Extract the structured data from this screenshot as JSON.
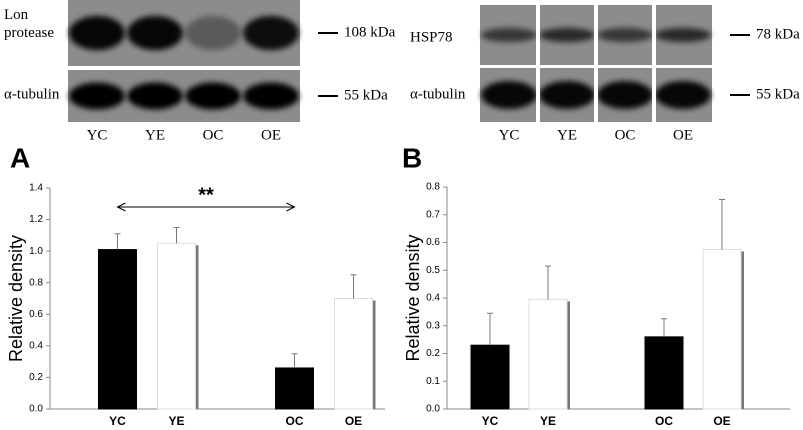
{
  "blots": [
    {
      "rows": [
        {
          "label": "Lon protease",
          "size": "108 kDa"
        },
        {
          "label": "α-tubulin",
          "size": "55 kDa"
        }
      ],
      "lanes": [
        "YC",
        "YE",
        "OC",
        "OE"
      ]
    },
    {
      "rows": [
        {
          "label": "HSP78",
          "size": "78 kDa"
        },
        {
          "label": "α-tubulin",
          "size": "55 kDa"
        }
      ],
      "lanes": [
        "YC",
        "YE",
        "OC",
        "OE"
      ]
    }
  ],
  "chart_data": [
    {
      "type": "bar",
      "panel": "A",
      "y_label": "Relative density",
      "annotation": "**",
      "categories": [
        "YC",
        "YE",
        null,
        "OC",
        "OE"
      ],
      "values": [
        1.01,
        1.05,
        null,
        0.26,
        0.7
      ],
      "errors": [
        0.1,
        0.1,
        null,
        0.09,
        0.15
      ],
      "colors": [
        "#000000",
        "#ffffff",
        null,
        "#000000",
        "#ffffff"
      ],
      "ylim": [
        0,
        1.4
      ],
      "yticks": [
        {
          "value": 0,
          "label": "0.0"
        },
        0.2,
        0.4,
        0.6,
        0.8,
        {
          "value": 1,
          "label": "1.0"
        },
        1.2,
        1.4
      ]
    },
    {
      "type": "bar",
      "panel": "B",
      "y_label": "Relative density",
      "categories": [
        "YC",
        "YE",
        null,
        "OC",
        "OE"
      ],
      "values": [
        0.23,
        0.395,
        null,
        0.26,
        0.575
      ],
      "errors": [
        0.115,
        0.12,
        null,
        0.065,
        0.18
      ],
      "colors": [
        "#000000",
        "#ffffff",
        null,
        "#000000",
        "#ffffff"
      ],
      "ylim": [
        0,
        0.8
      ],
      "yticks": [
        {
          "value": 0,
          "label": "0.0"
        },
        0.1,
        0.2,
        0.3,
        0.4,
        0.5,
        0.6,
        0.7,
        0.8
      ]
    }
  ]
}
